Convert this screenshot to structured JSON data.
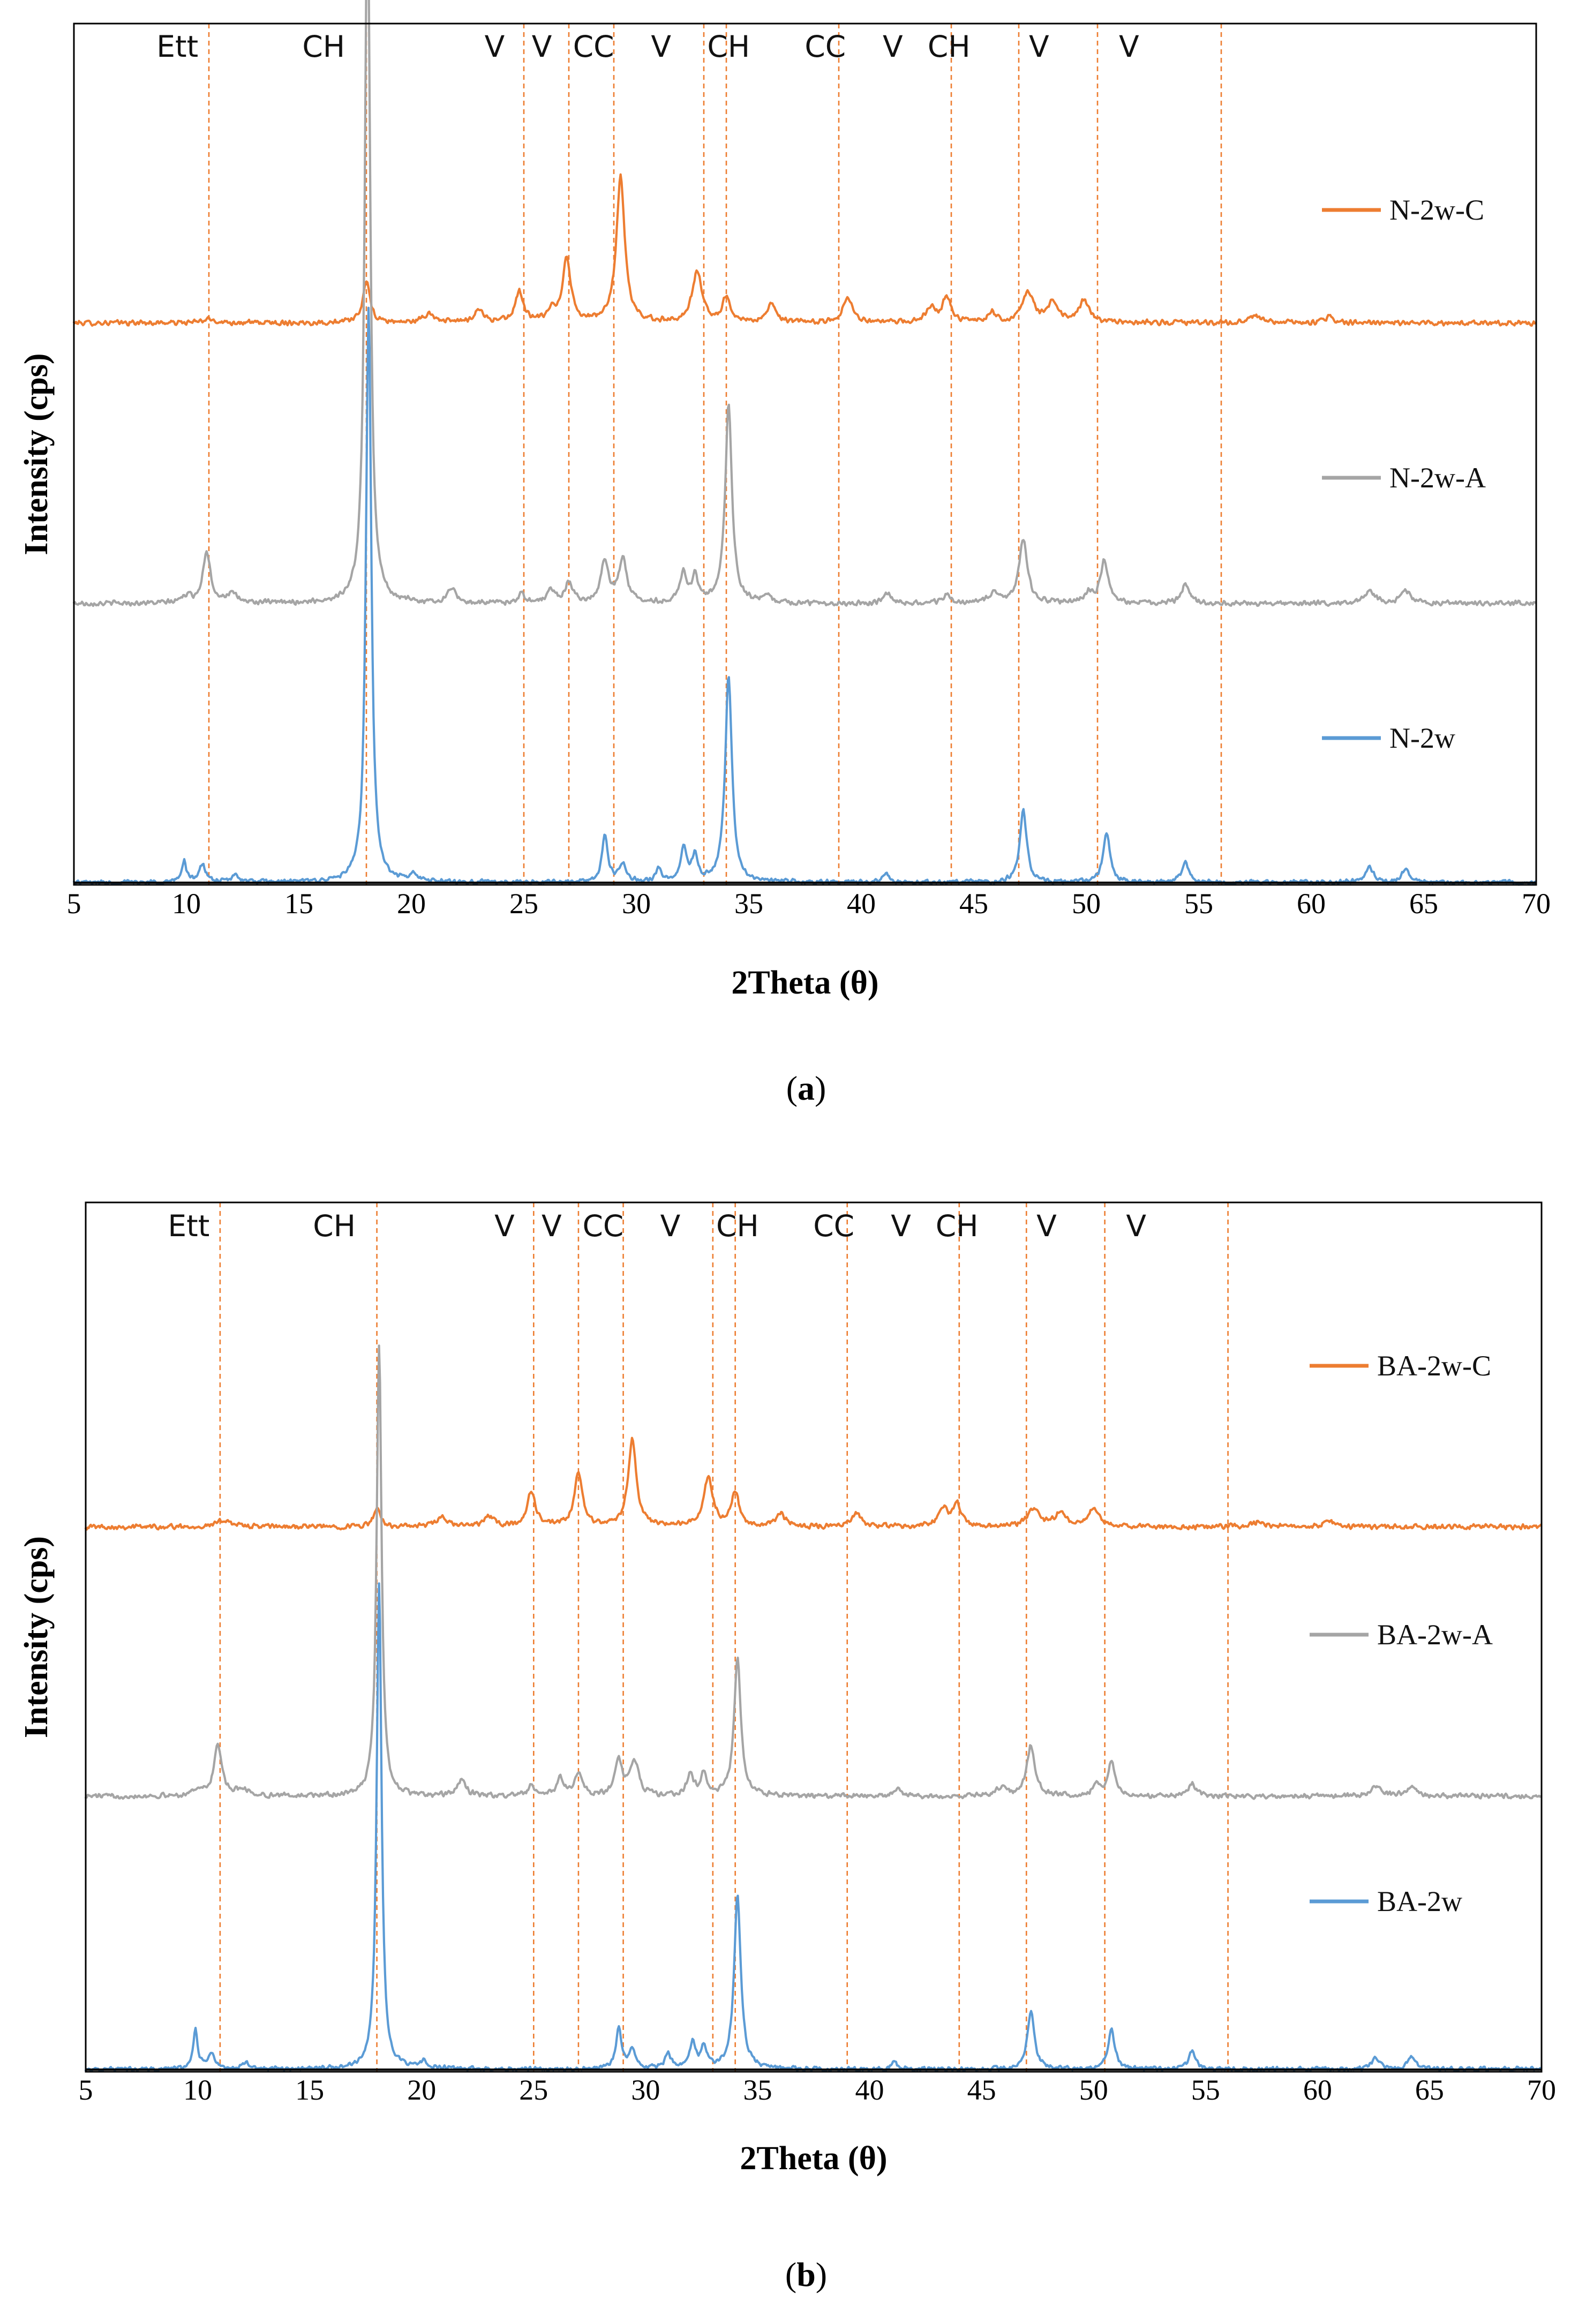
{
  "chart_data": [
    {
      "type": "line",
      "panel": "a",
      "caption_prefix": "(",
      "caption_letter": "a",
      "caption_suffix": ")",
      "xlabel": "2Theta (θ)",
      "ylabel": "Intensity (cps)",
      "xlim": [
        5,
        70
      ],
      "xticks": [
        5,
        10,
        15,
        20,
        25,
        30,
        35,
        40,
        45,
        50,
        55,
        60,
        65,
        70
      ],
      "ylim": [
        0,
        1
      ],
      "reference_lines_2theta": [
        11,
        18,
        25,
        27,
        29,
        33,
        34,
        39,
        44,
        47,
        50.5,
        56
      ],
      "phase_labels": [
        {
          "text": "Ett",
          "x": 9.6
        },
        {
          "text": "CH",
          "x": 16.1
        },
        {
          "text": "V",
          "x": 23.7
        },
        {
          "text": "V",
          "x": 25.8
        },
        {
          "text": "CC",
          "x": 28.1
        },
        {
          "text": "V",
          "x": 31.1
        },
        {
          "text": "CH",
          "x": 34.1
        },
        {
          "text": "CC",
          "x": 38.4
        },
        {
          "text": "V",
          "x": 41.4
        },
        {
          "text": "CH",
          "x": 43.9
        },
        {
          "text": "V",
          "x": 47.9
        },
        {
          "text": "V",
          "x": 51.9
        }
      ],
      "series": [
        {
          "name": "N-2w-C",
          "color": "#ed7d31",
          "offset": 0.656,
          "noise": 0.0035,
          "peaks": [
            [
              11,
              0.004,
              0.35
            ],
            [
              18.0,
              0.05,
              0.18
            ],
            [
              20.8,
              0.01,
              0.3
            ],
            [
              23.0,
              0.015,
              0.25
            ],
            [
              24.8,
              0.035,
              0.22
            ],
            [
              26.2,
              0.012,
              0.2
            ],
            [
              26.9,
              0.075,
              0.22
            ],
            [
              29.3,
              0.17,
              0.22
            ],
            [
              32.7,
              0.06,
              0.25
            ],
            [
              34.0,
              0.03,
              0.2
            ],
            [
              36.0,
              0.02,
              0.25
            ],
            [
              39.4,
              0.03,
              0.25
            ],
            [
              43.1,
              0.018,
              0.25
            ],
            [
              43.8,
              0.03,
              0.22
            ],
            [
              45.8,
              0.012,
              0.2
            ],
            [
              47.4,
              0.035,
              0.3
            ],
            [
              48.5,
              0.022,
              0.28
            ],
            [
              49.9,
              0.025,
              0.28
            ],
            [
              57.5,
              0.008,
              0.3
            ],
            [
              60.8,
              0.006,
              0.3
            ]
          ]
        },
        {
          "name": "N-2w-A",
          "color": "#a5a5a5",
          "offset": 0.33,
          "noise": 0.0035,
          "peaks": [
            [
              10.0,
              0.008,
              0.25
            ],
            [
              10.9,
              0.06,
              0.2
            ],
            [
              12.0,
              0.01,
              0.3
            ],
            [
              18.05,
              0.84,
              0.14
            ],
            [
              21.8,
              0.018,
              0.2
            ],
            [
              24.9,
              0.01,
              0.2
            ],
            [
              26.2,
              0.015,
              0.2
            ],
            [
              27.0,
              0.025,
              0.2
            ],
            [
              28.6,
              0.05,
              0.2
            ],
            [
              29.4,
              0.05,
              0.22
            ],
            [
              32.1,
              0.035,
              0.18
            ],
            [
              32.6,
              0.03,
              0.15
            ],
            [
              34.1,
              0.23,
              0.18
            ],
            [
              35.8,
              0.008,
              0.2
            ],
            [
              41.2,
              0.012,
              0.2
            ],
            [
              43.8,
              0.01,
              0.2
            ],
            [
              45.9,
              0.012,
              0.25
            ],
            [
              47.2,
              0.075,
              0.22
            ],
            [
              50.1,
              0.012,
              0.2
            ],
            [
              50.8,
              0.05,
              0.2
            ],
            [
              54.4,
              0.022,
              0.2
            ],
            [
              62.6,
              0.015,
              0.25
            ],
            [
              64.2,
              0.015,
              0.25
            ]
          ]
        },
        {
          "name": "N-2w",
          "color": "#5b9bd5",
          "offset": 0.006,
          "noise": 0.003,
          "peaks": [
            [
              9.9,
              0.025,
              0.12
            ],
            [
              10.7,
              0.02,
              0.18
            ],
            [
              12.2,
              0.008,
              0.2
            ],
            [
              18.1,
              0.67,
              0.14
            ],
            [
              20.1,
              0.008,
              0.2
            ],
            [
              28.6,
              0.055,
              0.15
            ],
            [
              29.4,
              0.02,
              0.2
            ],
            [
              31.0,
              0.015,
              0.15
            ],
            [
              32.1,
              0.04,
              0.15
            ],
            [
              32.6,
              0.03,
              0.15
            ],
            [
              34.1,
              0.24,
              0.18
            ],
            [
              41.1,
              0.012,
              0.15
            ],
            [
              47.2,
              0.085,
              0.18
            ],
            [
              50.9,
              0.058,
              0.18
            ],
            [
              54.4,
              0.025,
              0.18
            ],
            [
              62.6,
              0.018,
              0.2
            ],
            [
              64.2,
              0.015,
              0.2
            ]
          ]
        }
      ]
    },
    {
      "type": "line",
      "panel": "b",
      "caption_prefix": "(",
      "caption_letter": "b",
      "caption_suffix": ")",
      "xlabel": "2Theta (θ)",
      "ylabel": "Intensity (cps)",
      "xlim": [
        5,
        70
      ],
      "xticks": [
        5,
        10,
        15,
        20,
        25,
        30,
        35,
        40,
        45,
        50,
        55,
        60,
        65,
        70
      ],
      "ylim": [
        0,
        1
      ],
      "reference_lines_2theta": [
        11,
        18,
        25,
        27,
        29,
        33,
        34,
        39,
        44,
        47,
        50.5,
        56
      ],
      "phase_labels": [
        {
          "text": "Ett",
          "x": 9.6
        },
        {
          "text": "CH",
          "x": 16.1
        },
        {
          "text": "V",
          "x": 23.7
        },
        {
          "text": "V",
          "x": 25.8
        },
        {
          "text": "CC",
          "x": 28.1
        },
        {
          "text": "V",
          "x": 31.1
        },
        {
          "text": "CH",
          "x": 34.1
        },
        {
          "text": "CC",
          "x": 38.4
        },
        {
          "text": "V",
          "x": 41.4
        },
        {
          "text": "CH",
          "x": 43.9
        },
        {
          "text": "V",
          "x": 47.9
        },
        {
          "text": "V",
          "x": 51.9
        }
      ],
      "series": [
        {
          "name": "BA-2w-C",
          "color": "#ed7d31",
          "offset": 0.63,
          "noise": 0.0035,
          "peaks": [
            [
              11.2,
              0.008,
              0.35
            ],
            [
              18.0,
              0.02,
              0.18
            ],
            [
              20.9,
              0.01,
              0.3
            ],
            [
              23.0,
              0.012,
              0.25
            ],
            [
              24.9,
              0.04,
              0.22
            ],
            [
              27.0,
              0.06,
              0.22
            ],
            [
              29.4,
              0.1,
              0.22
            ],
            [
              32.8,
              0.055,
              0.25
            ],
            [
              34.0,
              0.04,
              0.2
            ],
            [
              36.0,
              0.015,
              0.25
            ],
            [
              39.4,
              0.015,
              0.25
            ],
            [
              43.3,
              0.02,
              0.25
            ],
            [
              43.9,
              0.025,
              0.22
            ],
            [
              47.3,
              0.02,
              0.3
            ],
            [
              48.5,
              0.015,
              0.28
            ],
            [
              50.0,
              0.02,
              0.28
            ],
            [
              57.4,
              0.006,
              0.3
            ],
            [
              60.5,
              0.006,
              0.3
            ]
          ]
        },
        {
          "name": "BA-2w-A",
          "color": "#a5a5a5",
          "offset": 0.32,
          "noise": 0.0035,
          "peaks": [
            [
              10.0,
              0.008,
              0.25
            ],
            [
              10.9,
              0.06,
              0.2
            ],
            [
              12.0,
              0.008,
              0.3
            ],
            [
              18.1,
              0.52,
              0.13
            ],
            [
              21.8,
              0.02,
              0.2
            ],
            [
              24.9,
              0.01,
              0.2
            ],
            [
              26.2,
              0.02,
              0.2
            ],
            [
              27.0,
              0.025,
              0.2
            ],
            [
              28.8,
              0.04,
              0.2
            ],
            [
              29.5,
              0.04,
              0.22
            ],
            [
              32.0,
              0.025,
              0.18
            ],
            [
              32.6,
              0.025,
              0.15
            ],
            [
              34.1,
              0.16,
              0.18
            ],
            [
              41.2,
              0.008,
              0.2
            ],
            [
              45.9,
              0.01,
              0.25
            ],
            [
              47.2,
              0.058,
              0.22
            ],
            [
              50.1,
              0.012,
              0.2
            ],
            [
              50.8,
              0.04,
              0.2
            ],
            [
              54.4,
              0.015,
              0.2
            ],
            [
              62.6,
              0.012,
              0.25
            ],
            [
              64.2,
              0.012,
              0.25
            ]
          ]
        },
        {
          "name": "BA-2w",
          "color": "#5b9bd5",
          "offset": 0.006,
          "noise": 0.003,
          "peaks": [
            [
              9.9,
              0.045,
              0.12
            ],
            [
              10.6,
              0.018,
              0.18
            ],
            [
              12.2,
              0.006,
              0.2
            ],
            [
              18.1,
              0.56,
              0.13
            ],
            [
              20.1,
              0.008,
              0.2
            ],
            [
              28.8,
              0.045,
              0.15
            ],
            [
              29.4,
              0.02,
              0.2
            ],
            [
              31.0,
              0.018,
              0.15
            ],
            [
              32.1,
              0.03,
              0.15
            ],
            [
              32.6,
              0.025,
              0.15
            ],
            [
              34.1,
              0.2,
              0.18
            ],
            [
              41.1,
              0.008,
              0.15
            ],
            [
              47.2,
              0.068,
              0.18
            ],
            [
              50.8,
              0.045,
              0.18
            ],
            [
              54.4,
              0.022,
              0.18
            ],
            [
              62.6,
              0.014,
              0.2
            ],
            [
              64.2,
              0.014,
              0.2
            ]
          ]
        }
      ]
    }
  ]
}
